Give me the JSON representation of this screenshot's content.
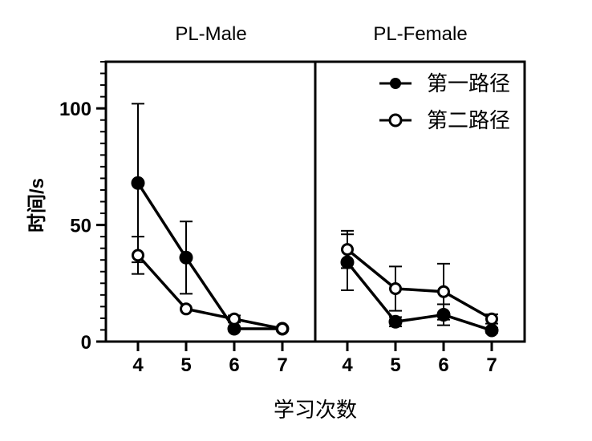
{
  "chart_data": {
    "type": "line",
    "ylabel": "时间/s",
    "xlabel": "学习次数",
    "ylim": [
      0,
      120
    ],
    "yticks": [
      0,
      50,
      100
    ],
    "x": [
      4,
      5,
      6,
      7
    ],
    "legend": {
      "placement": "top-right",
      "entries": [
        "第一路径",
        "第二路径"
      ]
    },
    "panels": [
      {
        "title": "PL-Male",
        "series": [
          {
            "name": "第一路径",
            "marker": "filled",
            "values": [
              68,
              36,
              5.5,
              5.5
            ],
            "errors": [
              34,
              15.5,
              0.5,
              0.5
            ]
          },
          {
            "name": "第二路径",
            "marker": "open",
            "values": [
              37,
              14,
              9.7,
              5.5
            ],
            "errors": [
              8,
              0.5,
              1.5,
              0.5
            ]
          }
        ]
      },
      {
        "title": "PL-Female",
        "series": [
          {
            "name": "第一路径",
            "marker": "filled",
            "values": [
              34,
              8.5,
              11.5,
              4.8
            ],
            "errors": [
              12,
              2,
              4.5,
              1
            ]
          },
          {
            "name": "第二路径",
            "marker": "open",
            "values": [
              39.5,
              22.7,
              21.4,
              9.7
            ],
            "errors": [
              8,
              9.5,
              12,
              2
            ]
          }
        ]
      }
    ]
  }
}
